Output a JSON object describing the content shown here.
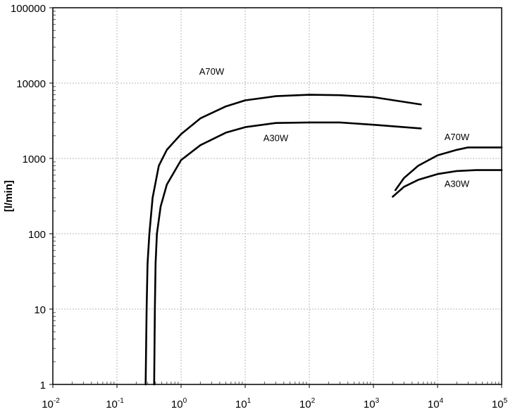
{
  "chart_data": {
    "type": "line",
    "title": "",
    "xlabel": "",
    "ylabel": "[l/min]",
    "x_scale": "log",
    "y_scale": "log",
    "xlim": [
      0.01,
      100000
    ],
    "ylim": [
      1,
      100000
    ],
    "grid": true,
    "x_ticks": [
      {
        "value": 0.01,
        "base": "10",
        "exp": "-2"
      },
      {
        "value": 0.1,
        "base": "10",
        "exp": "-1"
      },
      {
        "value": 1,
        "base": "10",
        "exp": "0"
      },
      {
        "value": 10,
        "base": "10",
        "exp": "1"
      },
      {
        "value": 100,
        "base": "10",
        "exp": "2"
      },
      {
        "value": 1000,
        "base": "10",
        "exp": "3"
      },
      {
        "value": 10000,
        "base": "10",
        "exp": "4"
      },
      {
        "value": 100000,
        "base": "10",
        "exp": "5"
      }
    ],
    "y_ticks": [
      {
        "value": 1,
        "label": "1"
      },
      {
        "value": 10,
        "label": "10"
      },
      {
        "value": 100,
        "label": "100"
      },
      {
        "value": 1000,
        "label": "1000"
      },
      {
        "value": 10000,
        "label": "10000"
      },
      {
        "value": 100000,
        "label": "100000"
      }
    ],
    "series": [
      {
        "name": "A70W",
        "label_at": {
          "x": 3,
          "y": 13000
        },
        "points": [
          [
            0.28,
            1
          ],
          [
            0.29,
            10
          ],
          [
            0.3,
            40
          ],
          [
            0.32,
            100
          ],
          [
            0.36,
            300
          ],
          [
            0.45,
            800
          ],
          [
            0.6,
            1300
          ],
          [
            1,
            2100
          ],
          [
            2,
            3400
          ],
          [
            5,
            4900
          ],
          [
            10,
            5900
          ],
          [
            30,
            6700
          ],
          [
            100,
            7000
          ],
          [
            300,
            6900
          ],
          [
            1000,
            6500
          ],
          [
            5500,
            5200
          ]
        ]
      },
      {
        "name": "A30W",
        "label_at": {
          "x": 30,
          "y": 1700
        },
        "points": [
          [
            0.38,
            1
          ],
          [
            0.39,
            10
          ],
          [
            0.4,
            40
          ],
          [
            0.42,
            100
          ],
          [
            0.48,
            230
          ],
          [
            0.6,
            450
          ],
          [
            1,
            950
          ],
          [
            2,
            1500
          ],
          [
            5,
            2200
          ],
          [
            10,
            2600
          ],
          [
            30,
            2950
          ],
          [
            100,
            3000
          ],
          [
            300,
            3000
          ],
          [
            1000,
            2800
          ],
          [
            5500,
            2500
          ]
        ]
      },
      {
        "name": "A70W",
        "label_at": {
          "x": 20000,
          "y": 1750
        },
        "points": [
          [
            2200,
            380
          ],
          [
            3000,
            550
          ],
          [
            5000,
            800
          ],
          [
            10000,
            1100
          ],
          [
            20000,
            1300
          ],
          [
            30000,
            1400
          ],
          [
            100000,
            1400
          ]
        ]
      },
      {
        "name": "A30W",
        "label_at": {
          "x": 20000,
          "y": 420
        },
        "points": [
          [
            2000,
            310
          ],
          [
            3000,
            420
          ],
          [
            5000,
            520
          ],
          [
            10000,
            620
          ],
          [
            20000,
            680
          ],
          [
            40000,
            700
          ],
          [
            100000,
            700
          ]
        ]
      }
    ]
  }
}
